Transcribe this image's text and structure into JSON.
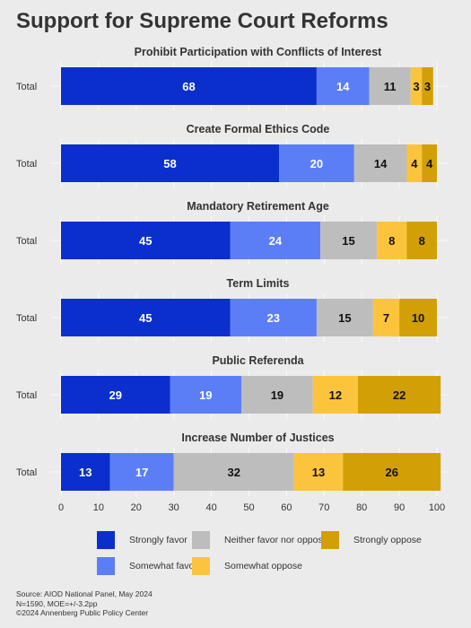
{
  "title": "Support for Supreme Court Reforms",
  "chart_data": {
    "type": "bar",
    "orientation": "horizontal-stacked",
    "xlim": [
      0,
      100
    ],
    "xticks": [
      "0",
      "10",
      "20",
      "30",
      "40",
      "50",
      "60",
      "70",
      "80",
      "90",
      "100"
    ],
    "row_label": "Total",
    "grid": true,
    "series": [
      {
        "name": "Strongly favor",
        "color": "#0a2fcc",
        "text_color": "#ffffff"
      },
      {
        "name": "Somewhat favor",
        "color": "#5b7ef7",
        "text_color": "#ffffff"
      },
      {
        "name": "Neither favor nor oppose",
        "color": "#bdbdbd",
        "text_color": "#111111"
      },
      {
        "name": "Somewhat oppose",
        "color": "#fcc43d",
        "text_color": "#111111"
      },
      {
        "name": "Strongly oppose",
        "color": "#d39f06",
        "text_color": "#111111"
      }
    ],
    "panels": [
      {
        "title": "Prohibit Participation with Conflicts of Interest",
        "values": [
          68,
          14,
          11,
          3,
          3
        ]
      },
      {
        "title": "Create Formal Ethics Code",
        "values": [
          58,
          20,
          14,
          4,
          4
        ]
      },
      {
        "title": "Mandatory Retirement Age",
        "values": [
          45,
          24,
          15,
          8,
          8
        ]
      },
      {
        "title": "Term Limits",
        "values": [
          45,
          23,
          15,
          7,
          10
        ]
      },
      {
        "title": "Public Referenda",
        "values": [
          29,
          19,
          19,
          12,
          22
        ]
      },
      {
        "title": "Increase Number of Justices",
        "values": [
          13,
          17,
          32,
          13,
          26
        ]
      }
    ],
    "legend_placement": "bottom"
  },
  "legend": [
    "Strongly favor",
    "Neither favor nor oppose",
    "Strongly oppose",
    "Somewhat favor",
    "Somewhat oppose"
  ],
  "source": {
    "line1": "Source: AIOD National Panel, May 2024",
    "line2": "N=1590, MOE=+/-3.2pp",
    "line3": "©2024 Annenberg Public Policy Center"
  }
}
